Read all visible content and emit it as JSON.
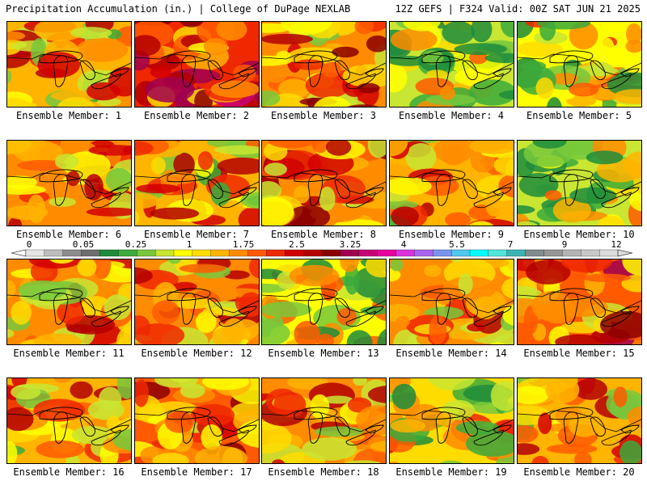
{
  "header": {
    "left": "Precipitation Accumulation (in.) | College of DuPage NEXLAB",
    "right": "12Z GEFS | F324 Valid: 00Z SAT JUN 21 2025"
  },
  "panels": [
    {
      "label": "Ensemble Member: 1",
      "intensity": 0.55
    },
    {
      "label": "Ensemble Member: 2",
      "intensity": 0.75
    },
    {
      "label": "Ensemble Member: 3",
      "intensity": 0.6
    },
    {
      "label": "Ensemble Member: 4",
      "intensity": 0.3
    },
    {
      "label": "Ensemble Member: 5",
      "intensity": 0.35
    },
    {
      "label": "Ensemble Member: 6",
      "intensity": 0.6
    },
    {
      "label": "Ensemble Member: 7",
      "intensity": 0.55
    },
    {
      "label": "Ensemble Member: 8",
      "intensity": 0.6
    },
    {
      "label": "Ensemble Member: 9",
      "intensity": 0.5
    },
    {
      "label": "Ensemble Member: 10",
      "intensity": 0.3
    },
    {
      "label": "Ensemble Member: 11",
      "intensity": 0.65
    },
    {
      "label": "Ensemble Member: 12",
      "intensity": 0.6
    },
    {
      "label": "Ensemble Member: 13",
      "intensity": 0.4
    },
    {
      "label": "Ensemble Member: 14",
      "intensity": 0.65
    },
    {
      "label": "Ensemble Member: 15",
      "intensity": 0.7
    },
    {
      "label": "Ensemble Member: 16",
      "intensity": 0.55
    },
    {
      "label": "Ensemble Member: 17",
      "intensity": 0.7
    },
    {
      "label": "Ensemble Member: 18",
      "intensity": 0.65
    },
    {
      "label": "Ensemble Member: 19",
      "intensity": 0.45
    },
    {
      "label": "Ensemble Member: 20",
      "intensity": 0.5
    }
  ],
  "colorbar": {
    "tick_labels": [
      "0",
      "0.05",
      "0.25",
      "1",
      "1.75",
      "2.5",
      "3.25",
      "4",
      "5.5",
      "7",
      "9",
      "12"
    ],
    "colors": [
      "#e6e6e6",
      "#bdbdbd",
      "#8c8c8c",
      "#6e6e6e",
      "#1e8c3c",
      "#3caa3c",
      "#78c83c",
      "#c8e632",
      "#ffff00",
      "#ffdc00",
      "#ffb400",
      "#ff8c00",
      "#ff5a00",
      "#f02800",
      "#d20000",
      "#b40000",
      "#8c0000",
      "#a00050",
      "#c80078",
      "#e600a0",
      "#dc32dc",
      "#aa64f0",
      "#7896f0",
      "#50c8f0",
      "#00ffff",
      "#50e6dc",
      "#3cb4b4",
      "#828c8c",
      "#969696",
      "#b4b4b4",
      "#c8c8c8",
      "#dcdcdc"
    ]
  }
}
